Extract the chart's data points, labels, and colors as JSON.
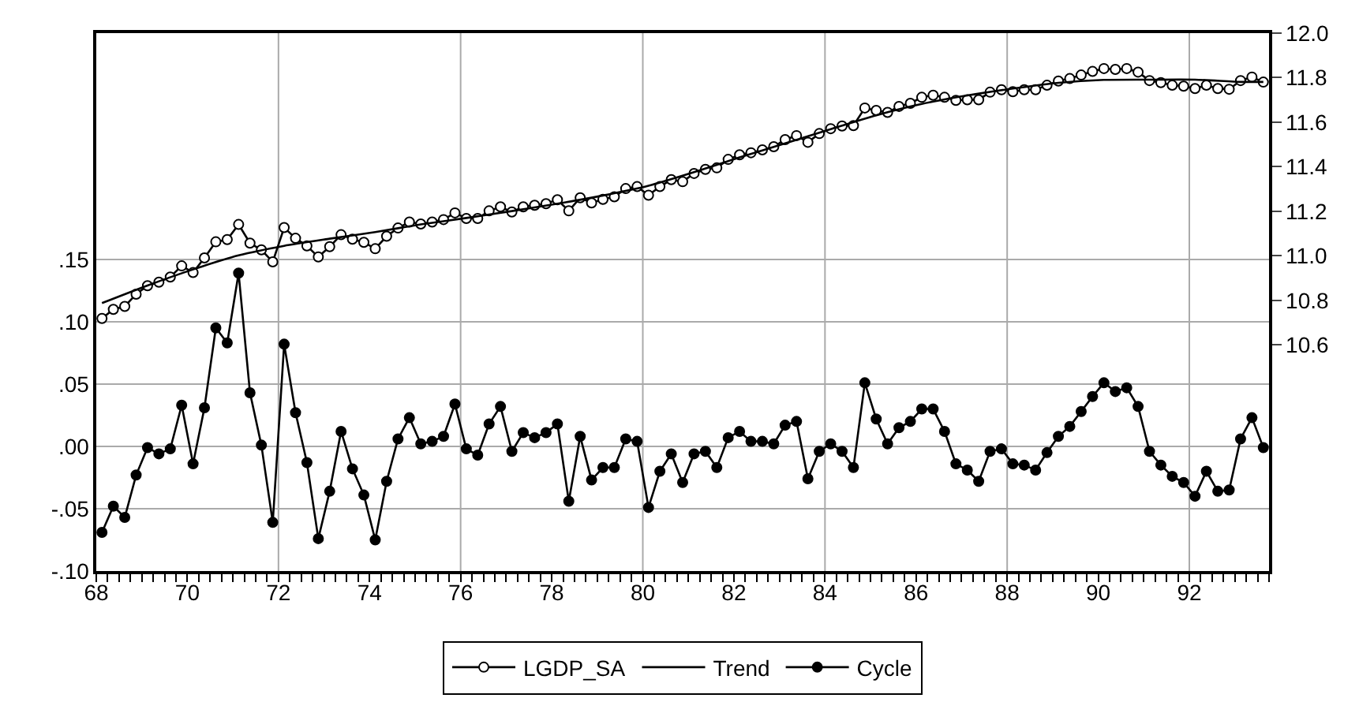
{
  "chart_data": {
    "type": "line",
    "x": [
      1968.125,
      1968.375,
      1968.625,
      1968.875,
      1969.125,
      1969.375,
      1969.625,
      1969.875,
      1970.125,
      1970.375,
      1970.625,
      1970.875,
      1971.125,
      1971.375,
      1971.625,
      1971.875,
      1972.125,
      1972.375,
      1972.625,
      1972.875,
      1973.125,
      1973.375,
      1973.625,
      1973.875,
      1974.125,
      1974.375,
      1974.625,
      1974.875,
      1975.125,
      1975.375,
      1975.625,
      1975.875,
      1976.125,
      1976.375,
      1976.625,
      1976.875,
      1977.125,
      1977.375,
      1977.625,
      1977.875,
      1978.125,
      1978.375,
      1978.625,
      1978.875,
      1979.125,
      1979.375,
      1979.625,
      1979.875,
      1980.125,
      1980.375,
      1980.625,
      1980.875,
      1981.125,
      1981.375,
      1981.625,
      1981.875,
      1982.125,
      1982.375,
      1982.625,
      1982.875,
      1983.125,
      1983.375,
      1983.625,
      1983.875,
      1984.125,
      1984.375,
      1984.625,
      1984.875,
      1985.125,
      1985.375,
      1985.625,
      1985.875,
      1986.125,
      1986.375,
      1986.625,
      1986.875,
      1987.125,
      1987.375,
      1987.625,
      1987.875,
      1988.125,
      1988.375,
      1988.625,
      1988.875,
      1989.125,
      1989.375,
      1989.625,
      1989.875,
      1990.125,
      1990.375,
      1990.625,
      1990.875,
      1991.125,
      1991.375,
      1991.625,
      1991.875,
      1992.125,
      1992.375,
      1992.625,
      1992.875,
      1993.125,
      1993.375,
      1993.625
    ],
    "series": [
      {
        "name": "LGDP_SA",
        "color": "#000000",
        "axis": "y2",
        "marker": "circle-open",
        "values": [
          10.719,
          10.76,
          10.773,
          10.828,
          10.866,
          10.882,
          10.905,
          10.955,
          10.925,
          10.991,
          11.063,
          11.073,
          11.141,
          11.057,
          11.027,
          10.973,
          11.127,
          11.079,
          11.045,
          10.995,
          11.041,
          11.095,
          11.075,
          11.061,
          11.032,
          11.088,
          11.125,
          11.152,
          11.143,
          11.152,
          11.163,
          11.193,
          11.168,
          11.168,
          11.202,
          11.22,
          11.197,
          11.22,
          11.227,
          11.234,
          11.252,
          11.202,
          11.261,
          11.238,
          11.254,
          11.265,
          11.302,
          11.311,
          11.272,
          11.311,
          11.342,
          11.333,
          11.37,
          11.388,
          11.395,
          11.433,
          11.454,
          11.463,
          11.476,
          11.49,
          11.522,
          11.54,
          11.51,
          11.549,
          11.571,
          11.583,
          11.585,
          11.664,
          11.653,
          11.644,
          11.671,
          11.685,
          11.712,
          11.721,
          11.712,
          11.698,
          11.701,
          11.701,
          11.735,
          11.746,
          11.737,
          11.746,
          11.746,
          11.766,
          11.785,
          11.796,
          11.812,
          11.828,
          11.841,
          11.837,
          11.841,
          11.825,
          11.787,
          11.778,
          11.766,
          11.762,
          11.751,
          11.766,
          11.751,
          11.748,
          11.787,
          11.803,
          11.78
        ]
      },
      {
        "name": "Trend",
        "color": "#000000",
        "axis": "y2",
        "marker": "none",
        "x": [
          1968.125,
          1969.125,
          1970.125,
          1971.125,
          1972.125,
          1973.125,
          1974.125,
          1975.125,
          1976.125,
          1977.125,
          1978.125,
          1979.125,
          1980.125,
          1981.125,
          1982.125,
          1983.125,
          1984.125,
          1985.125,
          1986.125,
          1987.125,
          1988.125,
          1989.125,
          1990.125,
          1991.125,
          1992.125,
          1993.125,
          1993.625
        ],
        "values": [
          10.788,
          10.867,
          10.939,
          11.002,
          11.045,
          11.077,
          11.107,
          11.141,
          11.17,
          11.201,
          11.234,
          11.271,
          11.315,
          11.376,
          11.442,
          11.505,
          11.569,
          11.631,
          11.682,
          11.72,
          11.751,
          11.777,
          11.79,
          11.791,
          11.791,
          11.781,
          11.781
        ]
      },
      {
        "name": "Cycle",
        "color": "#000000",
        "marker": "circle",
        "values": [
          -0.069,
          -0.048,
          -0.057,
          -0.023,
          -0.001,
          -0.006,
          -0.002,
          0.033,
          -0.014,
          0.031,
          0.095,
          0.083,
          0.139,
          0.043,
          0.001,
          -0.061,
          0.082,
          0.027,
          -0.013,
          -0.074,
          -0.036,
          0.012,
          -0.018,
          -0.039,
          -0.075,
          -0.028,
          0.006,
          0.023,
          0.002,
          0.004,
          0.008,
          0.034,
          -0.002,
          -0.007,
          0.018,
          0.032,
          -0.004,
          0.011,
          0.007,
          0.011,
          0.018,
          -0.044,
          0.008,
          -0.027,
          -0.017,
          -0.017,
          0.006,
          0.004,
          -0.049,
          -0.02,
          -0.006,
          -0.029,
          -0.006,
          -0.004,
          -0.017,
          0.007,
          0.012,
          0.004,
          0.004,
          0.002,
          0.017,
          0.02,
          -0.026,
          -0.004,
          0.002,
          -0.004,
          -0.017,
          0.051,
          0.022,
          0.002,
          0.015,
          0.02,
          0.03,
          0.03,
          0.012,
          -0.014,
          -0.019,
          -0.028,
          -0.004,
          -0.002,
          -0.014,
          -0.015,
          -0.019,
          -0.005,
          0.008,
          0.016,
          0.028,
          0.04,
          0.051,
          0.044,
          0.047,
          0.032,
          -0.004,
          -0.015,
          -0.024,
          -0.029,
          -0.04,
          -0.02,
          -0.036,
          -0.035,
          0.006,
          0.023,
          -0.001
        ]
      }
    ],
    "xlim": [
      1968,
      1993.75
    ],
    "xticks": [
      {
        "value": 1968,
        "label": "68"
      },
      {
        "value": 1970,
        "label": "70"
      },
      {
        "value": 1972,
        "label": "72"
      },
      {
        "value": 1974,
        "label": "74"
      },
      {
        "value": 1976,
        "label": "76"
      },
      {
        "value": 1978,
        "label": "78"
      },
      {
        "value": 1980,
        "label": "80"
      },
      {
        "value": 1982,
        "label": "82"
      },
      {
        "value": 1984,
        "label": "84"
      },
      {
        "value": 1986,
        "label": "86"
      },
      {
        "value": 1988,
        "label": "88"
      },
      {
        "value": 1990,
        "label": "90"
      },
      {
        "value": 1992,
        "label": "92"
      }
    ],
    "ref_lines": [
      {
        "axis": "x",
        "value": 1972,
        "color": "#aaaaaa"
      },
      {
        "axis": "x",
        "value": 1976,
        "color": "#aaaaaa"
      },
      {
        "axis": "x",
        "value": 1980,
        "color": "#aaaaaa"
      },
      {
        "axis": "x",
        "value": 1984,
        "color": "#aaaaaa"
      },
      {
        "axis": "x",
        "value": 1988,
        "color": "#aaaaaa"
      },
      {
        "axis": "x",
        "value": 1992,
        "color": "#aaaaaa"
      }
    ],
    "ylim": [
      -0.1,
      0.3315
    ],
    "yticks": [
      {
        "value": -0.1,
        "label": "-.10"
      },
      {
        "value": -0.05,
        "label": "-.05"
      },
      {
        "value": 0,
        "label": ".00"
      },
      {
        "value": 0.05,
        "label": ".05"
      },
      {
        "value": 0.1,
        "label": ".10"
      },
      {
        "value": 0.15,
        "label": ".15"
      }
    ],
    "y2lim": [
      9.585,
      12.0
    ],
    "y2ticks": [
      10.6,
      {
        "value": 10.8,
        "label": "10.8"
      },
      {
        "value": 11.0,
        "label": "11.0"
      },
      {
        "value": 11.2,
        "label": "11.2"
      },
      11.4,
      11.6,
      11.8,
      {
        "value": 12.0,
        "label": "12.0"
      }
    ],
    "grid": "y",
    "legend": "bottom",
    "line_style": "solid"
  }
}
